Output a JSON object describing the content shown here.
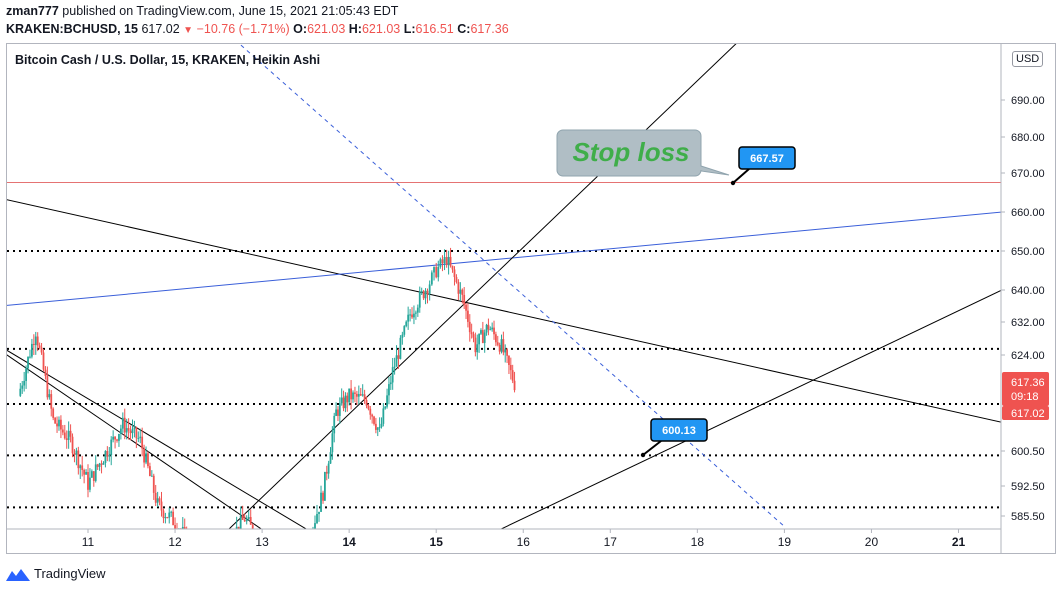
{
  "header": {
    "author": "zman777",
    "published_text": "published on TradingView.com, June 15, 2021 21:05:43 EDT",
    "symbol": "KRAKEN:BCHUSD, 15",
    "last": "617.02",
    "change": "−10.76 (−1.71%)",
    "open_label": "O:",
    "open": "621.03",
    "high_label": "H:",
    "high": "621.03",
    "low_label": "L:",
    "low": "616.51",
    "close_label": "C:",
    "close": "617.36"
  },
  "chart_title": "Bitcoin Cash / U.S. Dollar, 15, KRAKEN, Heikin Ashi",
  "currency_badge": "USD",
  "footer": {
    "brand": "TradingView"
  },
  "colors": {
    "up": "#26a69a",
    "down": "#ef5350",
    "stop_line": "#e57373",
    "trend_blue": "#3a5fd9",
    "badge_blue": "#2196f3",
    "callout_bg": "#b0bec5",
    "callout_text": "#3fae49"
  },
  "chart_data": {
    "type": "candlestick",
    "style": "Heikin Ashi",
    "x_axis": {
      "labels": [
        "11",
        "12",
        "13",
        "14",
        "15",
        "16",
        "17",
        "18",
        "19",
        "20",
        "21"
      ],
      "unit": "day (June 2021)"
    },
    "y_axis": {
      "labels": [
        "690.00",
        "680.00",
        "670.00",
        "660.00",
        "650.00",
        "640.00",
        "632.00",
        "624.00",
        "600.50",
        "592.50",
        "585.50"
      ],
      "range": [
        582,
        702
      ]
    },
    "price_labels": [
      {
        "text": "617.36",
        "sub": "09:18"
      },
      {
        "text": "617.02"
      }
    ],
    "annotations": {
      "stop_loss_text": "Stop loss",
      "stop_loss_level": 667.57,
      "stop_loss_label": "667.57",
      "target_label": "600.13",
      "target_level": 600.13
    },
    "horizontal_dotted_levels": [
      650,
      625.5,
      612,
      599.5,
      587.5
    ],
    "path": [
      [
        10.2,
        614
      ],
      [
        10.4,
        630
      ],
      [
        10.6,
        608
      ],
      [
        10.8,
        603
      ],
      [
        11.0,
        593
      ],
      [
        11.2,
        600
      ],
      [
        11.4,
        607
      ],
      [
        11.6,
        603
      ],
      [
        11.8,
        588
      ],
      [
        12.0,
        584
      ],
      [
        12.2,
        578
      ],
      [
        12.5,
        576
      ],
      [
        12.8,
        585
      ],
      [
        13.1,
        575
      ],
      [
        13.4,
        571
      ],
      [
        13.7,
        591
      ],
      [
        13.85,
        610
      ],
      [
        14.0,
        614
      ],
      [
        14.2,
        613
      ],
      [
        14.35,
        605
      ],
      [
        14.5,
        620
      ],
      [
        14.7,
        634
      ],
      [
        14.9,
        641
      ],
      [
        15.0,
        645
      ],
      [
        15.12,
        648
      ],
      [
        15.3,
        638
      ],
      [
        15.45,
        626
      ],
      [
        15.6,
        631
      ],
      [
        15.75,
        626
      ],
      [
        15.9,
        617
      ]
    ]
  }
}
